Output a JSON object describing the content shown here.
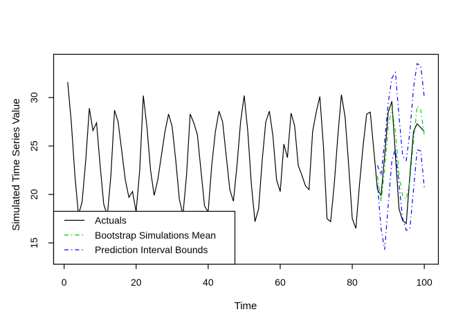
{
  "chart_data": {
    "type": "line",
    "title": "",
    "xlabel": "Time",
    "ylabel": "Simulated Time Series Value",
    "xlim": [
      -3,
      104
    ],
    "ylim": [
      12.8,
      34.5
    ],
    "x_ticks": [
      0,
      20,
      40,
      60,
      80,
      100
    ],
    "y_ticks": [
      15,
      20,
      25,
      30
    ],
    "grid": false,
    "background_color": "#ffffff",
    "axis_color": "#000000",
    "legend": {
      "position": "bottom-left",
      "entries": [
        {
          "label": "Actuals",
          "color": "#000000",
          "style": "solid"
        },
        {
          "label": "Bootstrap Simulations Mean",
          "color": "#00d400",
          "style": "dotdash"
        },
        {
          "label": "Prediction Interval Bounds",
          "color": "#0000ff",
          "style": "dotdash"
        }
      ]
    },
    "series": [
      {
        "name": "Actuals",
        "color": "#000000",
        "style": "solid",
        "x_start": 1,
        "values": [
          31.6,
          27.5,
          22.0,
          17.9,
          19.2,
          23.5,
          28.9,
          26.6,
          27.4,
          23.0,
          19.0,
          17.8,
          22.0,
          28.7,
          27.5,
          24.5,
          21.5,
          19.7,
          20.3,
          18.2,
          22.5,
          30.2,
          27.0,
          22.5,
          19.9,
          21.5,
          24.0,
          26.5,
          28.3,
          27.0,
          23.5,
          19.5,
          17.9,
          22.0,
          28.3,
          27.4,
          26.2,
          22.5,
          18.8,
          18.2,
          23.0,
          26.5,
          28.6,
          27.5,
          24.0,
          20.5,
          19.3,
          23.0,
          27.5,
          30.2,
          26.5,
          21.0,
          17.2,
          18.5,
          23.5,
          27.5,
          28.6,
          26.0,
          21.5,
          20.3,
          25.2,
          23.8,
          28.4,
          27.1,
          23.0,
          22.0,
          20.9,
          20.5,
          26.5,
          28.5,
          30.1,
          25.0,
          17.5,
          17.2,
          21.0,
          26.0,
          30.3,
          28.0,
          23.0,
          17.5,
          16.5,
          21.0,
          25.0,
          28.3,
          28.5,
          24.5,
          20.5,
          19.9,
          24.0,
          28.5,
          29.6,
          24.0,
          18.5,
          17.3,
          17.0,
          22.0,
          26.5,
          27.3,
          26.9,
          26.5
        ]
      },
      {
        "name": "Bootstrap Simulations Mean",
        "color": "#00d400",
        "style": "dotdash",
        "x_start": 87,
        "values": [
          21.9,
          19.3,
          22.5,
          27.0,
          28.9,
          26.5,
          22.0,
          19.8,
          19.5,
          21.5,
          25.5,
          29.1,
          28.8,
          26.1
        ]
      },
      {
        "name": "Prediction Interval Upper Bound",
        "color": "#0000ff",
        "style": "dotdash",
        "x_start": 87,
        "values": [
          23.0,
          22.0,
          25.5,
          29.5,
          32.0,
          32.6,
          28.0,
          24.0,
          23.5,
          26.5,
          31.0,
          33.5,
          33.3,
          30.0
        ]
      },
      {
        "name": "Prediction Interval Lower Bound",
        "color": "#0000ff",
        "style": "dotdash",
        "x_start": 87,
        "values": [
          21.0,
          16.5,
          14.3,
          19.0,
          23.5,
          24.7,
          21.0,
          17.5,
          16.3,
          16.5,
          20.5,
          24.6,
          24.5,
          20.7
        ]
      }
    ]
  }
}
